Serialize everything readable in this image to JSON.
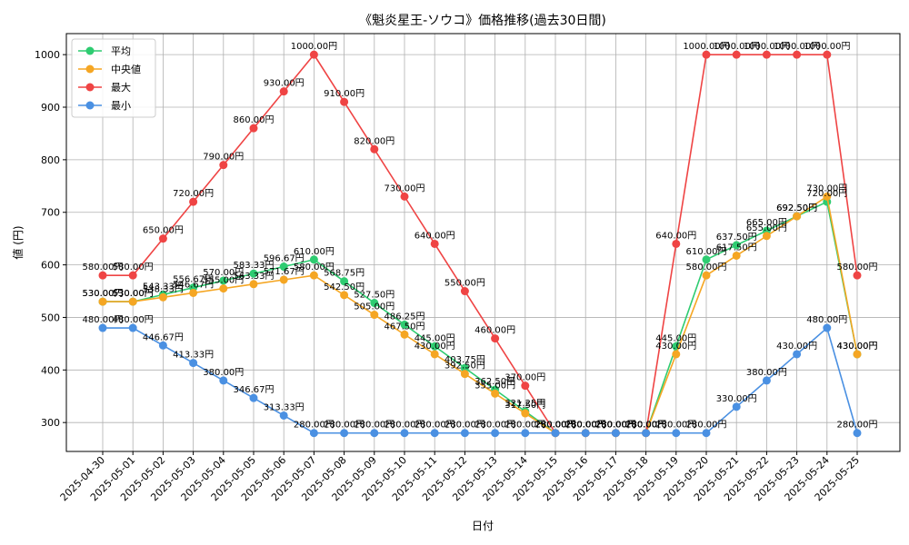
{
  "chart_data": {
    "type": "line",
    "title": "《魁炎星王-ソウコ》価格推移(過去30日間)",
    "xlabel": "日付",
    "ylabel": "値 (円)",
    "ylim": [
      245,
      1040
    ],
    "yticks": [
      300,
      400,
      500,
      600,
      700,
      800,
      900,
      1000
    ],
    "grid": true,
    "legend_position": "top-left",
    "value_suffix": "円",
    "categories": [
      "2025-04-30",
      "2025-05-01",
      "2025-05-02",
      "2025-05-03",
      "2025-05-04",
      "2025-05-05",
      "2025-05-06",
      "2025-05-07",
      "2025-05-08",
      "2025-05-09",
      "2025-05-10",
      "2025-05-11",
      "2025-05-12",
      "2025-05-13",
      "2025-05-14",
      "2025-05-15",
      "2025-05-16",
      "2025-05-17",
      "2025-05-18",
      "2025-05-19",
      "2025-05-20",
      "2025-05-21",
      "2025-05-22",
      "2025-05-23",
      "2025-05-24",
      "2025-05-25"
    ],
    "series": [
      {
        "name": "平均",
        "color": "#2ecc71",
        "values": [
          530.0,
          530.0,
          543.33,
          556.67,
          570.0,
          583.33,
          596.67,
          610.0,
          568.75,
          527.5,
          486.25,
          445.0,
          403.75,
          362.5,
          321.25,
          280.0,
          280.0,
          280.0,
          280.0,
          445.0,
          610.0,
          637.5,
          665.0,
          692.5,
          720.0,
          430.0
        ]
      },
      {
        "name": "中央値",
        "color": "#f5a623",
        "values": [
          530.0,
          530.0,
          538.33,
          546.67,
          555.0,
          563.33,
          571.67,
          580.0,
          542.5,
          505.0,
          467.5,
          430.0,
          392.5,
          355.0,
          317.5,
          280.0,
          280.0,
          280.0,
          280.0,
          430.0,
          580.0,
          617.5,
          655.0,
          692.5,
          730.0,
          430.0
        ]
      },
      {
        "name": "最大",
        "color": "#ef4444",
        "values": [
          580.0,
          580.0,
          650.0,
          720.0,
          790.0,
          860.0,
          930.0,
          1000.0,
          910.0,
          820.0,
          730.0,
          640.0,
          550.0,
          460.0,
          370.0,
          280.0,
          280.0,
          280.0,
          280.0,
          640.0,
          1000.0,
          1000.0,
          1000.0,
          1000.0,
          1000.0,
          580.0
        ]
      },
      {
        "name": "最小",
        "color": "#4a90e2",
        "values": [
          480.0,
          480.0,
          446.67,
          413.33,
          380.0,
          346.67,
          313.33,
          280.0,
          280.0,
          280.0,
          280.0,
          280.0,
          280.0,
          280.0,
          280.0,
          280.0,
          280.0,
          280.0,
          280.0,
          280.0,
          280.0,
          330.0,
          380.0,
          430.0,
          480.0,
          280.0
        ]
      }
    ]
  }
}
